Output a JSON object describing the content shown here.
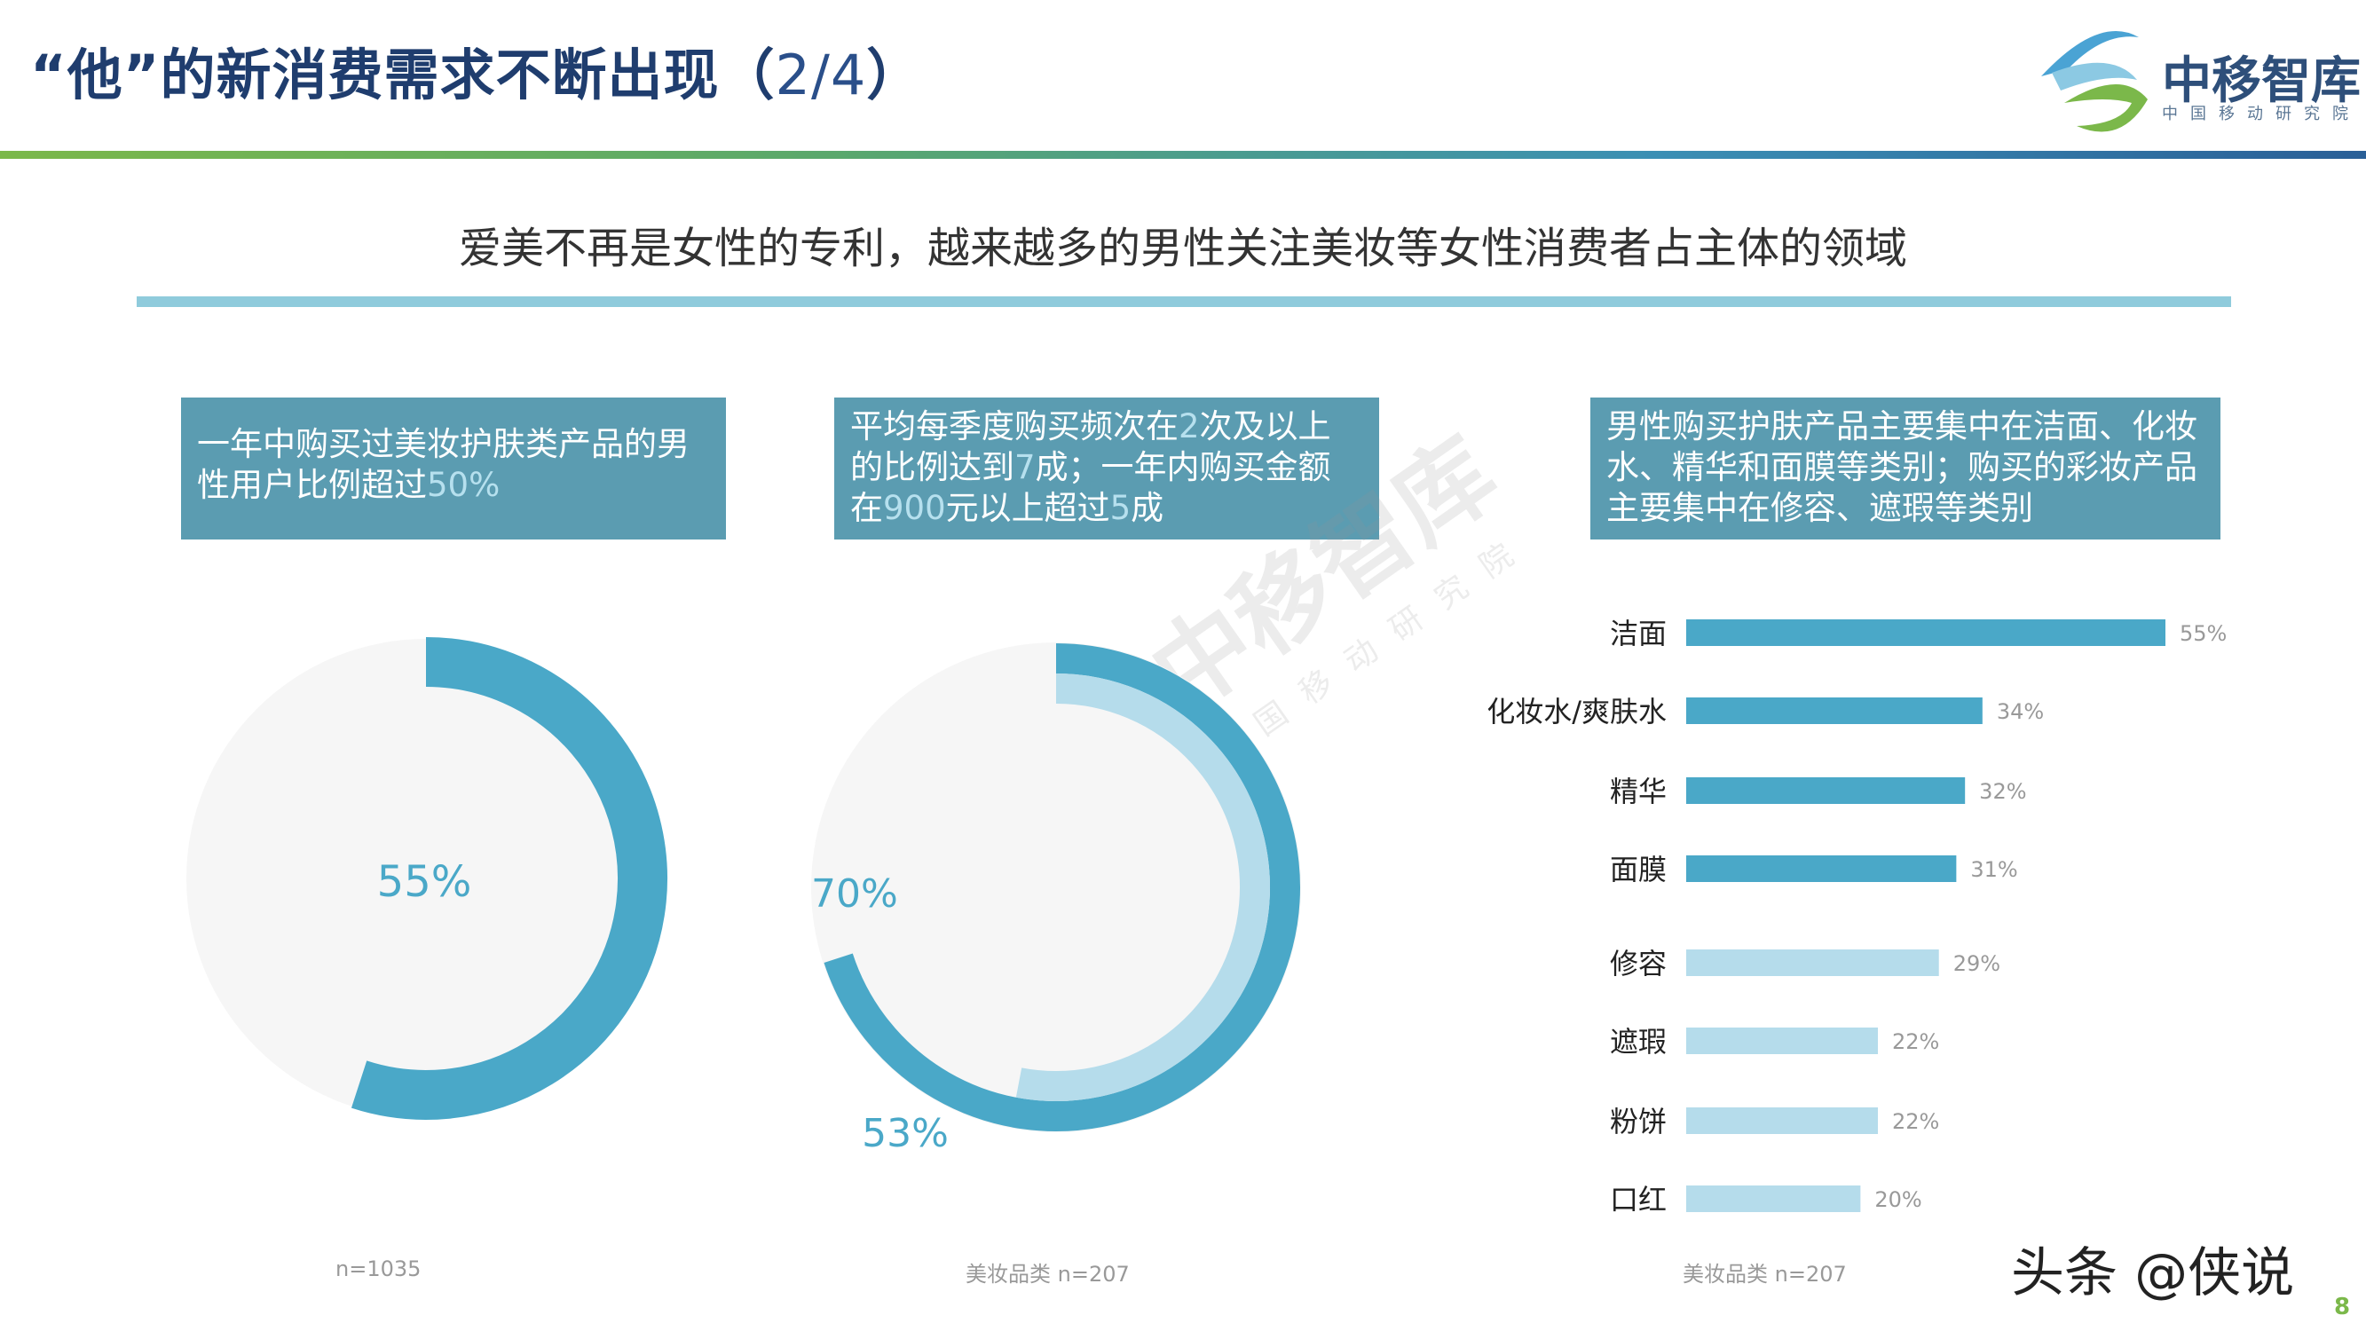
{
  "header": {
    "title": "“他”的新消费需求不断出现（",
    "title_page": "2/4",
    "title_end": "）",
    "logo_name": "中移智库",
    "logo_sub": "中国移动研究院"
  },
  "subtitle": "爱美不再是女性的专利，越来越多的男性关注美妆等女性消费者占主体的领域",
  "boxes": [
    {
      "text_a": "一年中购买过美妆护肤类产品的男性用户比例超过",
      "num": "50%"
    },
    {
      "l1_a": "平均每季度购买频次在",
      "l1_num": "2",
      "l1_b": "次及以上",
      "l2_a": "的比例达到",
      "l2_num": "7",
      "l2_b": "成；一年内购买金额",
      "l3_a": "在",
      "l3_num": "900",
      "l3_b": "元以上超过",
      "l3_num2": "5",
      "l3_c": "成"
    },
    {
      "text": "男性购买护肤产品主要集中在洁面、化妆水、精华和面膜等类别；购买的彩妆产品主要集中在修容、遮瑕等类别"
    }
  ],
  "watermark": {
    "name": "中移智库",
    "sub": "国移动研究院"
  },
  "footnotes": [
    "n=1035",
    "美妆品类 n=207",
    "美妆品类 n=207"
  ],
  "brand": "头条 @侠说",
  "page_number": "8",
  "colors": {
    "primary": "#4aa8c8",
    "light": "#b5dceb",
    "track": "#f6f6f6",
    "box": "#5b9cb1"
  },
  "chart_data": [
    {
      "type": "pie",
      "variant": "donut",
      "values": [
        55
      ],
      "labels": [
        "55%"
      ]
    },
    {
      "type": "pie",
      "variant": "concentric-donut",
      "series": [
        {
          "values": [
            70
          ],
          "label": "70%"
        },
        {
          "values": [
            53
          ],
          "label": "53%"
        }
      ]
    },
    {
      "type": "bar",
      "orientation": "horizontal",
      "categories": [
        "洁面",
        "化妆水/爽肤水",
        "精华",
        "面膜",
        "修容",
        "遮瑕",
        "粉饼",
        "口红"
      ],
      "values": [
        55,
        34,
        32,
        31,
        29,
        22,
        22,
        20
      ],
      "value_labels": [
        "55%",
        "34%",
        "32%",
        "31%",
        "29%",
        "22%",
        "22%",
        "20%"
      ],
      "groups": [
        "skincare",
        "skincare",
        "skincare",
        "skincare",
        "makeup",
        "makeup",
        "makeup",
        "makeup"
      ]
    }
  ]
}
